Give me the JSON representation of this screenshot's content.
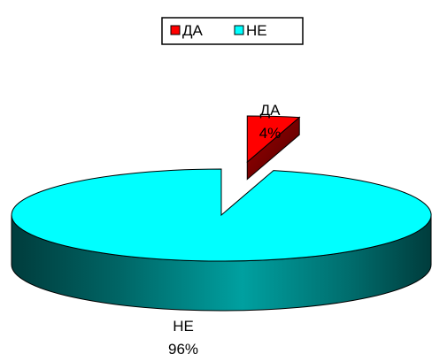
{
  "chart_data": {
    "type": "pie",
    "categories": [
      "ДА",
      "НЕ"
    ],
    "values": [
      4,
      96
    ],
    "value_labels": [
      "4%",
      "96%"
    ],
    "colors": [
      "#ff0000",
      "#00ffff"
    ],
    "side_colors": [
      "#800000",
      "#008080"
    ],
    "legend": {
      "placement": "top-center",
      "entries": [
        "ДА",
        "НЕ"
      ]
    },
    "style": "3d-exploded"
  }
}
